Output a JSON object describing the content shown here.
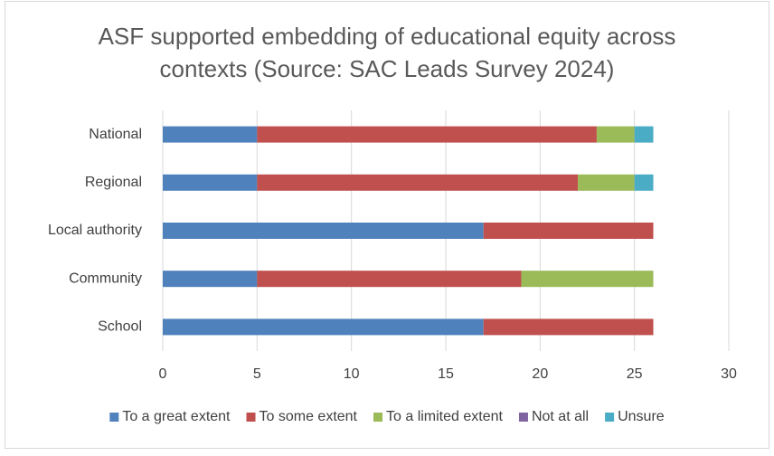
{
  "chart_data": {
    "type": "bar",
    "orientation": "horizontal",
    "stacked": true,
    "title": "ASF supported embedding of educational equity across contexts (Source: SAC Leads Survey 2024)",
    "categories": [
      "National",
      "Regional",
      "Local authority",
      "Community",
      "School"
    ],
    "series": [
      {
        "name": "To a great extent",
        "color": "#4f81bd",
        "values": [
          5,
          5,
          17,
          5,
          17
        ]
      },
      {
        "name": "To some extent",
        "color": "#c0504d",
        "values": [
          18,
          17,
          9,
          14,
          9
        ]
      },
      {
        "name": "To a limited extent",
        "color": "#9bbb59",
        "values": [
          2,
          3,
          0,
          7,
          0
        ]
      },
      {
        "name": "Not at all",
        "color": "#8064a2",
        "values": [
          0,
          0,
          0,
          0,
          0
        ]
      },
      {
        "name": "Unsure",
        "color": "#4bacc6",
        "values": [
          1,
          1,
          0,
          0,
          0
        ]
      }
    ],
    "xlim": [
      0,
      30
    ],
    "xticks": [
      0,
      5,
      10,
      15,
      20,
      25,
      30
    ],
    "grid": true,
    "legend": "bottom"
  }
}
